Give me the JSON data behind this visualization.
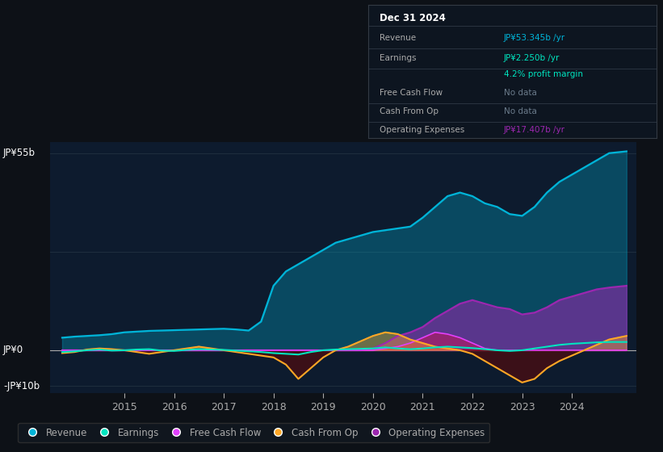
{
  "bg_color": "#0d1117",
  "plot_bg_color": "#0d1b2e",
  "grid_color": "#1e2d3d",
  "ylabel_top": "JP¥55b",
  "ylabel_zero": "JP¥0",
  "ylabel_neg": "-JP¥10b",
  "ylim": [
    -12,
    58
  ],
  "xlim": [
    2013.5,
    2025.3
  ],
  "xticks": [
    2015,
    2016,
    2017,
    2018,
    2019,
    2020,
    2021,
    2022,
    2023,
    2024
  ],
  "colors": {
    "revenue": "#00b4d8",
    "earnings": "#00e5c0",
    "free_cash_flow": "#e040fb",
    "cash_from_op": "#ffa726",
    "operating_expenses": "#9c27b0"
  },
  "legend": [
    "Revenue",
    "Earnings",
    "Free Cash Flow",
    "Cash From Op",
    "Operating Expenses"
  ],
  "legend_colors": [
    "#00b4d8",
    "#00e5c0",
    "#e040fb",
    "#ffa726",
    "#9c27b0"
  ],
  "revenue": {
    "x": [
      2013.75,
      2014.0,
      2014.25,
      2014.5,
      2014.75,
      2015.0,
      2015.25,
      2015.5,
      2015.75,
      2016.0,
      2016.25,
      2016.5,
      2016.75,
      2017.0,
      2017.25,
      2017.5,
      2017.75,
      2018.0,
      2018.25,
      2018.5,
      2018.75,
      2019.0,
      2019.25,
      2019.5,
      2019.75,
      2020.0,
      2020.25,
      2020.5,
      2020.75,
      2021.0,
      2021.25,
      2021.5,
      2021.75,
      2022.0,
      2022.25,
      2022.5,
      2022.75,
      2023.0,
      2023.25,
      2023.5,
      2023.75,
      2024.0,
      2024.25,
      2024.5,
      2024.75,
      2025.1
    ],
    "y": [
      3.5,
      3.8,
      4.0,
      4.2,
      4.5,
      5.0,
      5.2,
      5.4,
      5.5,
      5.6,
      5.7,
      5.8,
      5.9,
      6.0,
      5.8,
      5.5,
      8.0,
      18.0,
      22.0,
      24.0,
      26.0,
      28.0,
      30.0,
      31.0,
      32.0,
      33.0,
      33.5,
      34.0,
      34.5,
      37.0,
      40.0,
      43.0,
      44.0,
      43.0,
      41.0,
      40.0,
      38.0,
      37.5,
      40.0,
      44.0,
      47.0,
      49.0,
      51.0,
      53.0,
      55.0,
      55.5
    ]
  },
  "earnings": {
    "x": [
      2013.75,
      2014.0,
      2014.25,
      2014.5,
      2014.75,
      2015.0,
      2015.25,
      2015.5,
      2015.75,
      2016.0,
      2016.25,
      2016.5,
      2016.75,
      2017.0,
      2017.25,
      2017.5,
      2017.75,
      2018.0,
      2018.25,
      2018.5,
      2018.75,
      2019.0,
      2019.25,
      2019.5,
      2019.75,
      2020.0,
      2020.25,
      2020.5,
      2020.75,
      2021.0,
      2021.25,
      2021.5,
      2021.75,
      2022.0,
      2022.25,
      2022.5,
      2022.75,
      2023.0,
      2023.25,
      2023.5,
      2023.75,
      2024.0,
      2024.25,
      2024.5,
      2024.75,
      2025.1
    ],
    "y": [
      -0.5,
      -0.3,
      0.0,
      0.2,
      -0.1,
      0.0,
      0.2,
      0.3,
      -0.1,
      -0.2,
      0.1,
      0.3,
      0.2,
      0.1,
      -0.1,
      -0.3,
      -0.5,
      -0.8,
      -1.0,
      -1.2,
      -0.5,
      0.0,
      0.2,
      0.3,
      0.4,
      0.5,
      0.8,
      0.5,
      0.3,
      0.5,
      0.8,
      1.0,
      0.8,
      0.6,
      0.3,
      0.0,
      -0.2,
      0.0,
      0.5,
      1.0,
      1.5,
      1.8,
      2.0,
      2.2,
      2.3,
      2.3
    ]
  },
  "cash_from_op": {
    "x": [
      2013.75,
      2014.0,
      2014.25,
      2014.5,
      2014.75,
      2015.0,
      2015.25,
      2015.5,
      2015.75,
      2016.0,
      2016.25,
      2016.5,
      2016.75,
      2017.0,
      2017.25,
      2017.5,
      2017.75,
      2018.0,
      2018.25,
      2018.5,
      2018.75,
      2019.0,
      2019.25,
      2019.5,
      2019.75,
      2020.0,
      2020.25,
      2020.5,
      2020.75,
      2021.0,
      2021.25,
      2021.5,
      2021.75,
      2022.0,
      2022.25,
      2022.5,
      2022.75,
      2023.0,
      2023.25,
      2023.5,
      2023.75,
      2024.0,
      2024.25,
      2024.5,
      2024.75,
      2025.1
    ],
    "y": [
      -0.8,
      -0.5,
      0.2,
      0.5,
      0.3,
      0.0,
      -0.5,
      -1.0,
      -0.5,
      0.0,
      0.5,
      1.0,
      0.5,
      0.0,
      -0.5,
      -1.0,
      -1.5,
      -2.0,
      -4.0,
      -8.0,
      -5.0,
      -2.0,
      0.0,
      1.0,
      2.5,
      4.0,
      5.0,
      4.5,
      3.0,
      2.0,
      1.0,
      0.5,
      0.0,
      -1.0,
      -3.0,
      -5.0,
      -7.0,
      -9.0,
      -8.0,
      -5.0,
      -3.0,
      -1.5,
      0.0,
      1.5,
      3.0,
      4.0
    ]
  },
  "free_cash_flow": {
    "x": [
      2013.75,
      2014.0,
      2014.25,
      2014.5,
      2014.75,
      2015.0,
      2015.25,
      2015.5,
      2015.75,
      2016.0,
      2016.25,
      2016.5,
      2016.75,
      2017.0,
      2017.25,
      2017.5,
      2017.75,
      2018.0,
      2018.25,
      2018.5,
      2018.75,
      2019.0,
      2019.25,
      2019.5,
      2019.75,
      2020.0,
      2020.25,
      2020.5,
      2020.75,
      2021.0,
      2021.25,
      2021.5,
      2021.75,
      2022.0,
      2022.25,
      2022.5,
      2022.75,
      2023.0,
      2023.25,
      2023.5,
      2023.75,
      2024.0,
      2024.25,
      2024.5,
      2024.75,
      2025.1
    ],
    "y": [
      0.0,
      0.0,
      0.0,
      0.0,
      0.0,
      0.0,
      0.0,
      0.0,
      0.0,
      0.0,
      0.0,
      0.0,
      0.0,
      0.0,
      0.0,
      0.0,
      0.0,
      0.0,
      0.0,
      0.0,
      0.0,
      0.0,
      0.0,
      0.0,
      0.0,
      0.0,
      0.5,
      1.0,
      2.0,
      3.5,
      5.0,
      4.5,
      3.5,
      2.0,
      0.5,
      0.0,
      0.0,
      0.0,
      0.0,
      0.0,
      0.0,
      0.0,
      0.0,
      0.0,
      0.0,
      0.0
    ]
  },
  "operating_expenses": {
    "x": [
      2013.75,
      2014.0,
      2014.25,
      2014.5,
      2014.75,
      2015.0,
      2015.25,
      2015.5,
      2015.75,
      2016.0,
      2016.25,
      2016.5,
      2016.75,
      2017.0,
      2017.25,
      2017.5,
      2017.75,
      2018.0,
      2018.25,
      2018.5,
      2018.75,
      2019.0,
      2019.25,
      2019.5,
      2019.75,
      2020.0,
      2020.25,
      2020.5,
      2020.75,
      2021.0,
      2021.25,
      2021.5,
      2021.75,
      2022.0,
      2022.25,
      2022.5,
      2022.75,
      2023.0,
      2023.25,
      2023.5,
      2023.75,
      2024.0,
      2024.25,
      2024.5,
      2024.75,
      2025.1
    ],
    "y": [
      0.0,
      0.0,
      0.0,
      0.0,
      0.0,
      0.0,
      0.0,
      0.0,
      0.0,
      0.0,
      0.0,
      0.0,
      0.0,
      0.0,
      0.0,
      0.0,
      0.0,
      0.0,
      0.0,
      0.0,
      0.0,
      0.0,
      0.0,
      0.0,
      0.0,
      0.5,
      2.0,
      4.0,
      5.0,
      6.5,
      9.0,
      11.0,
      13.0,
      14.0,
      13.0,
      12.0,
      11.5,
      10.0,
      10.5,
      12.0,
      14.0,
      15.0,
      16.0,
      17.0,
      17.5,
      18.0
    ]
  }
}
